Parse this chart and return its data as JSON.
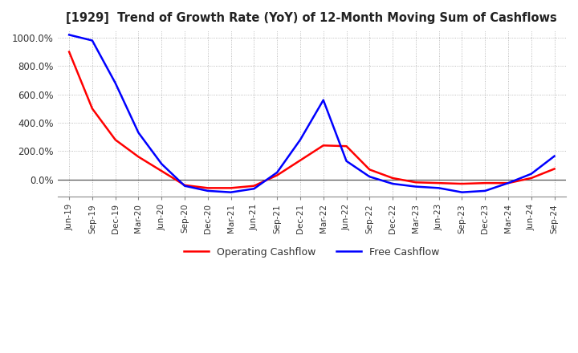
{
  "title": "[1929]  Trend of Growth Rate (YoY) of 12-Month Moving Sum of Cashflows",
  "ylim": [
    -120,
    1050
  ],
  "yticks": [
    0,
    200,
    400,
    600,
    800,
    1000
  ],
  "ytick_labels": [
    "0.0%",
    "200.0%",
    "400.0%",
    "600.0%",
    "800.0%",
    "1000.0%"
  ],
  "background_color": "#ffffff",
  "grid_color": "#aaaaaa",
  "legend_entries": [
    "Operating Cashflow",
    "Free Cashflow"
  ],
  "line_colors": [
    "#ff0000",
    "#0000ff"
  ],
  "x_labels": [
    "Jun-19",
    "Sep-19",
    "Dec-19",
    "Mar-20",
    "Jun-20",
    "Sep-20",
    "Dec-20",
    "Mar-21",
    "Jun-21",
    "Sep-21",
    "Dec-21",
    "Mar-22",
    "Jun-22",
    "Sep-22",
    "Dec-22",
    "Mar-23",
    "Jun-23",
    "Sep-23",
    "Dec-23",
    "Mar-24",
    "Jun-24",
    "Sep-24"
  ],
  "operating_cashflow": [
    900,
    500,
    280,
    160,
    60,
    -40,
    -60,
    -60,
    -45,
    30,
    135,
    240,
    235,
    70,
    10,
    -20,
    -25,
    -30,
    -25,
    -25,
    10,
    75
  ],
  "free_cashflow": [
    1020,
    980,
    680,
    330,
    110,
    -45,
    -80,
    -90,
    -65,
    50,
    280,
    560,
    130,
    20,
    -30,
    -50,
    -60,
    -90,
    -80,
    -25,
    40,
    165
  ]
}
